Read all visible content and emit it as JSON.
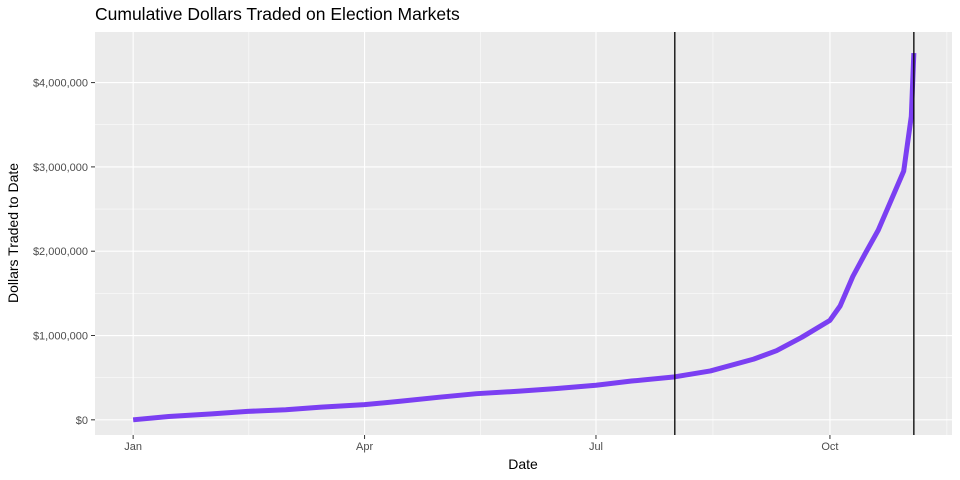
{
  "chart_data": {
    "type": "line",
    "title": "Cumulative Dollars Traded on Election Markets",
    "xlabel": "Date",
    "ylabel": "Dollars Traded to Date",
    "x_ticks": [
      {
        "label": "Jan",
        "date": "2020-01-01"
      },
      {
        "label": "Apr",
        "date": "2020-04-01"
      },
      {
        "label": "Jul",
        "date": "2020-07-01"
      },
      {
        "label": "Oct",
        "date": "2020-10-01"
      }
    ],
    "y_ticks": [
      {
        "label": "$0",
        "value": 0
      },
      {
        "label": "$1,000,000",
        "value": 1000000
      },
      {
        "label": "$2,000,000",
        "value": 2000000
      },
      {
        "label": "$3,000,000",
        "value": 3000000
      },
      {
        "label": "$4,000,000",
        "value": 4000000
      }
    ],
    "xlim": [
      "2019-12-17",
      "2020-11-18"
    ],
    "ylim": [
      -180000,
      4600000
    ],
    "grid": true,
    "line_color": "#7b3ff2",
    "vlines": [
      "2020-08-01",
      "2020-11-03"
    ],
    "series": [
      {
        "x": [
          "2020-01-01",
          "2020-01-15",
          "2020-02-01",
          "2020-02-15",
          "2020-03-01",
          "2020-03-15",
          "2020-04-01",
          "2020-04-15",
          "2020-05-01",
          "2020-05-15",
          "2020-06-01",
          "2020-06-15",
          "2020-07-01",
          "2020-07-15",
          "2020-08-01",
          "2020-08-15",
          "2020-09-01",
          "2020-09-10",
          "2020-09-20",
          "2020-10-01",
          "2020-10-05",
          "2020-10-10",
          "2020-10-15",
          "2020-10-20",
          "2020-10-25",
          "2020-10-30",
          "2020-11-02",
          "2020-11-03"
        ],
        "y": [
          0,
          40000,
          70000,
          100000,
          120000,
          150000,
          180000,
          220000,
          270000,
          310000,
          340000,
          370000,
          410000,
          460000,
          510000,
          580000,
          720000,
          820000,
          980000,
          1180000,
          1350000,
          1700000,
          1980000,
          2250000,
          2600000,
          2950000,
          3600000,
          4350000
        ]
      }
    ]
  }
}
